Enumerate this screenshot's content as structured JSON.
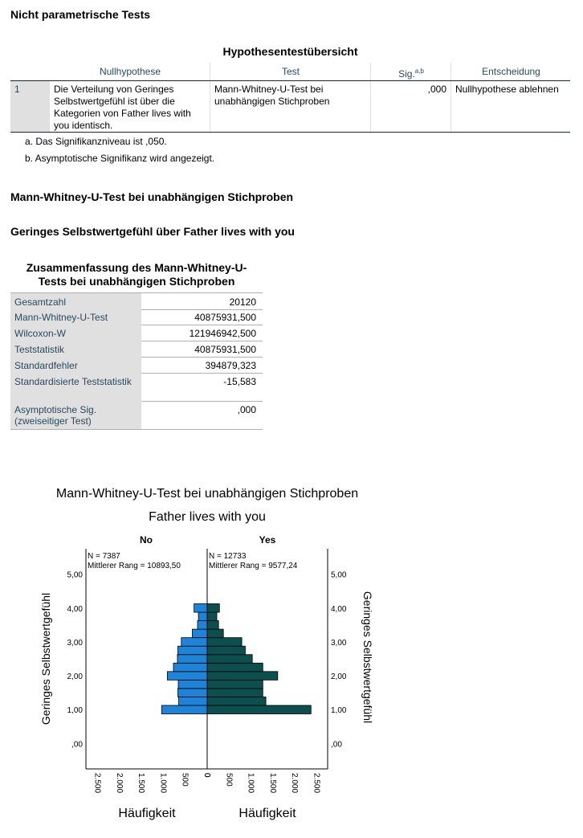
{
  "page_title": "Nicht parametrische Tests",
  "hypothesis_table": {
    "title": "Hypothesentestübersicht",
    "col_nullhypothese": "Nullhypothese",
    "col_test": "Test",
    "col_sig": "Sig.",
    "col_sig_sup": "a,b",
    "col_entscheidung": "Entscheidung",
    "row": {
      "index": "1",
      "nullhypothese": "Die Verteilung von Geringes Selbstwertgefühl ist über die Kategorien von Father lives with you identisch.",
      "test": "Mann-Whitney-U-Test bei unabhängigen Stichproben",
      "sig": ",000",
      "entscheidung": "Nullhypothese ablehnen"
    },
    "footnote_a": "a. Das Signifikanzniveau ist ,050.",
    "footnote_b": "b. Asymptotische Signifikanz wird angezeigt."
  },
  "section_title": "Mann-Whitney-U-Test bei unabhängigen Stichproben",
  "subsection_title": "Geringes Selbstwertgefühl über Father lives with you",
  "summary": {
    "title_line1": "Zusammenfassung des Mann-Whitney-U-",
    "title_line2": "Tests bei unabhängigen Stichproben",
    "rows": [
      {
        "label": "Gesamtzahl",
        "value": "20120"
      },
      {
        "label": "Mann-Whitney-U-Test",
        "value": "40875931,500"
      },
      {
        "label": "Wilcoxon-W",
        "value": "121946942,500"
      },
      {
        "label": "Teststatistik",
        "value": "40875931,500"
      },
      {
        "label": "Standardfehler",
        "value": "394879,323"
      },
      {
        "label": "Standardisierte Teststatistik",
        "value": "-15,583"
      },
      {
        "label": "Asymptotische Sig. (zweiseitiger Test)",
        "value": ",000"
      }
    ]
  },
  "chart_data": {
    "type": "bar",
    "title": "Mann-Whitney-U-Test bei unabhängigen Stichproben",
    "subtitle": "Father lives with you",
    "ylabel": "Geringes Selbstwertgefühl",
    "xlabel": "Häufigkeit",
    "ylim": [
      -0.75,
      5.75
    ],
    "yticks": [
      "5,00",
      "4,00",
      "3,00",
      "2,00",
      "1,00",
      ",00"
    ],
    "xlim": [
      0,
      2750
    ],
    "xticks": [
      "2.500",
      "2.000",
      "1.500",
      "1.000",
      "500",
      "0"
    ],
    "xticks_right": [
      "0",
      "500",
      "1.000",
      "1.500",
      "2.000",
      "2.500"
    ],
    "bin_width": 0.25,
    "bins": [
      1.0,
      1.25,
      1.5,
      1.75,
      2.0,
      2.25,
      2.5,
      2.75,
      3.0,
      3.25,
      3.5,
      3.75,
      4.0
    ],
    "series": [
      {
        "name": "No",
        "info_n": "N = 7387",
        "info_rank": "Mittlerer Rang = 10893,50",
        "color": "#1f83d8",
        "values": [
          1040,
          650,
          670,
          660,
          910,
          770,
          680,
          670,
          590,
          340,
          220,
          200,
          300
        ]
      },
      {
        "name": "Yes",
        "info_n": "N = 12733",
        "info_rank": "Mittlerer Rang = 9577,24",
        "color": "#0d4f4f",
        "values": [
          2370,
          1340,
          1270,
          1270,
          1610,
          1270,
          1030,
          870,
          790,
          370,
          260,
          220,
          280
        ]
      }
    ]
  }
}
